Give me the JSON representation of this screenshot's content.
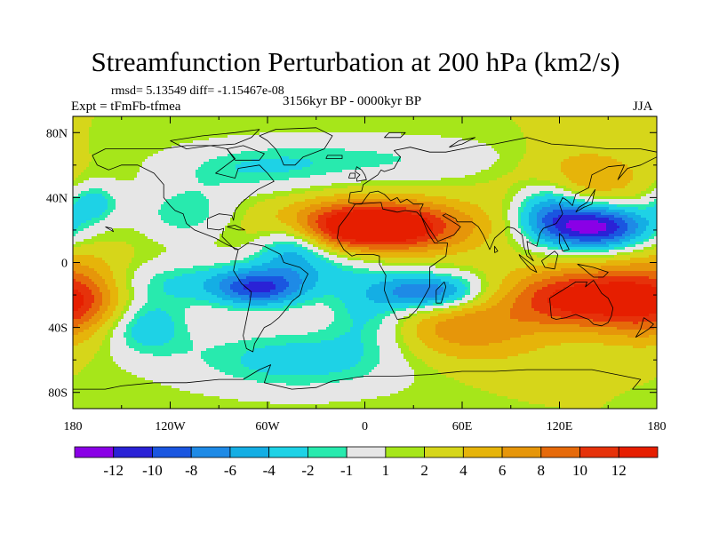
{
  "title": "Streamfunction Perturbation at 200 hPa (km2/s)",
  "stats_text": "rmsd= 5.13549 diff= -1.15467e-08",
  "experiment_label": "Expt = tFmFb-tfmea",
  "period_label": "3156kyr BP - 0000kyr BP",
  "season_label": "JJA",
  "axes": {
    "x_ticks": [
      "180",
      "120W",
      "60W",
      "0",
      "60E",
      "120E",
      "180"
    ],
    "y_ticks": [
      "80N",
      "40N",
      "0",
      "40S",
      "80S"
    ]
  },
  "colorbar": {
    "labels": [
      "-12",
      "-10",
      "-8",
      "-6",
      "-4",
      "-2",
      "-1",
      "1",
      "2",
      "4",
      "6",
      "8",
      "10",
      "12"
    ],
    "colors": [
      "#8a00e6",
      "#2a22d6",
      "#1a56e0",
      "#1e8ae6",
      "#14aee4",
      "#1ed2e6",
      "#28eaae",
      "#e6e6e6",
      "#a6e61a",
      "#d6d61a",
      "#e6b40a",
      "#e6960a",
      "#e66a0a",
      "#e6320a",
      "#e61e00"
    ]
  },
  "chart_data": {
    "type": "heatmap",
    "title": "Streamfunction Perturbation at 200 hPa (km2/s)",
    "x_range": [
      -180,
      180
    ],
    "y_range": [
      -90,
      90
    ],
    "levels": [
      -12,
      -10,
      -8,
      -6,
      -4,
      -2,
      -1,
      1,
      2,
      4,
      6,
      8,
      10,
      12
    ],
    "background_value": 2,
    "features": [
      {
        "lon": 142,
        "lat": 22,
        "amp": -15,
        "sx": 24,
        "sy": 10
      },
      {
        "lon": 113,
        "lat": 35,
        "amp": -7,
        "sx": 15,
        "sy": 13
      },
      {
        "lon": -168,
        "lat": 37,
        "amp": -5,
        "sx": 12,
        "sy": 9
      },
      {
        "lon": -110,
        "lat": 30,
        "amp": -4,
        "sx": 22,
        "sy": 12
      },
      {
        "lon": 5,
        "lat": 22,
        "amp": 16,
        "sx": 38,
        "sy": 11
      },
      {
        "lon": -45,
        "lat": 12,
        "amp": -6,
        "sx": 15,
        "sy": 11
      },
      {
        "lon": -30,
        "lat": -2,
        "amp": -4,
        "sx": 30,
        "sy": 12
      },
      {
        "lon": 130,
        "lat": 52,
        "amp": 5,
        "sx": 30,
        "sy": 14
      },
      {
        "lon": 40,
        "lat": 62,
        "amp": -2,
        "sx": 70,
        "sy": 10
      },
      {
        "lon": 40,
        "lat": -18,
        "amp": -10,
        "sx": 22,
        "sy": 8
      },
      {
        "lon": 2,
        "lat": -30,
        "amp": -4,
        "sx": 18,
        "sy": 16
      },
      {
        "lon": -65,
        "lat": -16,
        "amp": -10,
        "sx": 20,
        "sy": 8
      },
      {
        "lon": -120,
        "lat": -12,
        "amp": -4,
        "sx": 45,
        "sy": 10
      },
      {
        "lon": -138,
        "lat": -38,
        "amp": -6,
        "sx": 20,
        "sy": 13
      },
      {
        "lon": 130,
        "lat": -22,
        "amp": 11,
        "sx": 30,
        "sy": 13
      },
      {
        "lon": -178,
        "lat": -22,
        "amp": 10,
        "sx": 25,
        "sy": 17
      },
      {
        "lon": 60,
        "lat": -38,
        "amp": 5,
        "sx": 30,
        "sy": 12
      },
      {
        "lon": 60,
        "lat": -55,
        "amp": 2,
        "sx": 40,
        "sy": 12
      },
      {
        "lon": -40,
        "lat": -60,
        "amp": -5,
        "sx": 55,
        "sy": 15
      },
      {
        "lon": -70,
        "lat": 56,
        "amp": -3,
        "sx": 40,
        "sy": 10
      },
      {
        "lon": -28,
        "lat": 68,
        "amp": -1.5,
        "sx": 60,
        "sy": 10
      }
    ]
  }
}
